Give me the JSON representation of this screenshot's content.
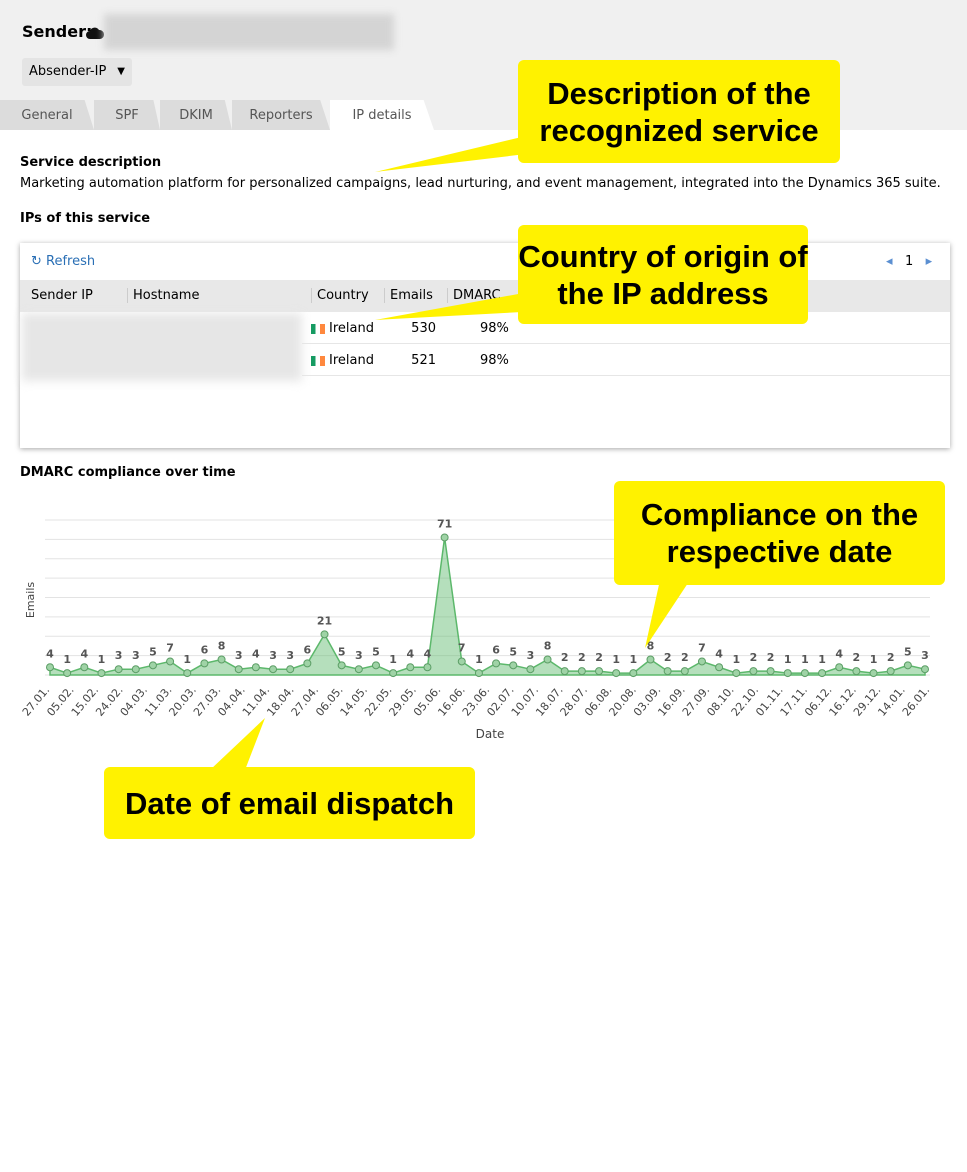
{
  "header": {
    "sender_label": "Sender:",
    "dropdown": "Absender-IP"
  },
  "tabs": [
    "General",
    "SPF",
    "DKIM",
    "Reporters",
    "IP details"
  ],
  "service": {
    "heading": "Service description",
    "text": "Marketing automation platform for personalized campaigns, lead nurturing, and event management, integrated into the Dynamics 365 suite."
  },
  "ips": {
    "heading": "IPs of this service",
    "refresh": "Refresh",
    "page": "1",
    "columns": [
      "Sender IP",
      "Hostname",
      "Country",
      "Emails",
      "DMARC"
    ],
    "rows": [
      {
        "country": "Ireland",
        "emails": 530,
        "dmarc": "98%"
      },
      {
        "country": "Ireland",
        "emails": 521,
        "dmarc": "98%"
      }
    ]
  },
  "chart_data": {
    "type": "area",
    "title": "DMARC compliance over time",
    "y_label": "Emails",
    "x_label": "Date",
    "color": "#5cb86b",
    "ylim": [
      0,
      80
    ],
    "yticks": [
      0,
      10,
      20,
      30,
      40,
      50,
      60,
      70,
      80
    ],
    "grid": true,
    "date_labels": [
      "27.01.",
      "05.02.",
      "15.02.",
      "24.02.",
      "04.03.",
      "11.03.",
      "20.03.",
      "27.03.",
      "04.04.",
      "11.04.",
      "18.04.",
      "27.04.",
      "06.05.",
      "14.05.",
      "22.05.",
      "29.05.",
      "05.06.",
      "16.06.",
      "23.06.",
      "02.07.",
      "10.07.",
      "18.07.",
      "28.07.",
      "06.08.",
      "20.08.",
      "03.09.",
      "16.09.",
      "27.09.",
      "08.10.",
      "22.10.",
      "01.11.",
      "17.11.",
      "06.12.",
      "16.12.",
      "29.12.",
      "14.01.",
      "26.01."
    ],
    "values": [
      4,
      1,
      4,
      1,
      3,
      3,
      5,
      7,
      1,
      6,
      8,
      3,
      4,
      3,
      3,
      6,
      21,
      5,
      3,
      5,
      1,
      4,
      4,
      71,
      7,
      1,
      6,
      5,
      3,
      8,
      2,
      2,
      2,
      1,
      1,
      8,
      2,
      2,
      7,
      4,
      1,
      2,
      2,
      1,
      1,
      1,
      4,
      2,
      1,
      2,
      5,
      3
    ]
  },
  "callouts": [
    "Description of the recognized service",
    "Country of origin of the IP address",
    "Compliance on the respective date",
    "Date of email dispatch"
  ]
}
